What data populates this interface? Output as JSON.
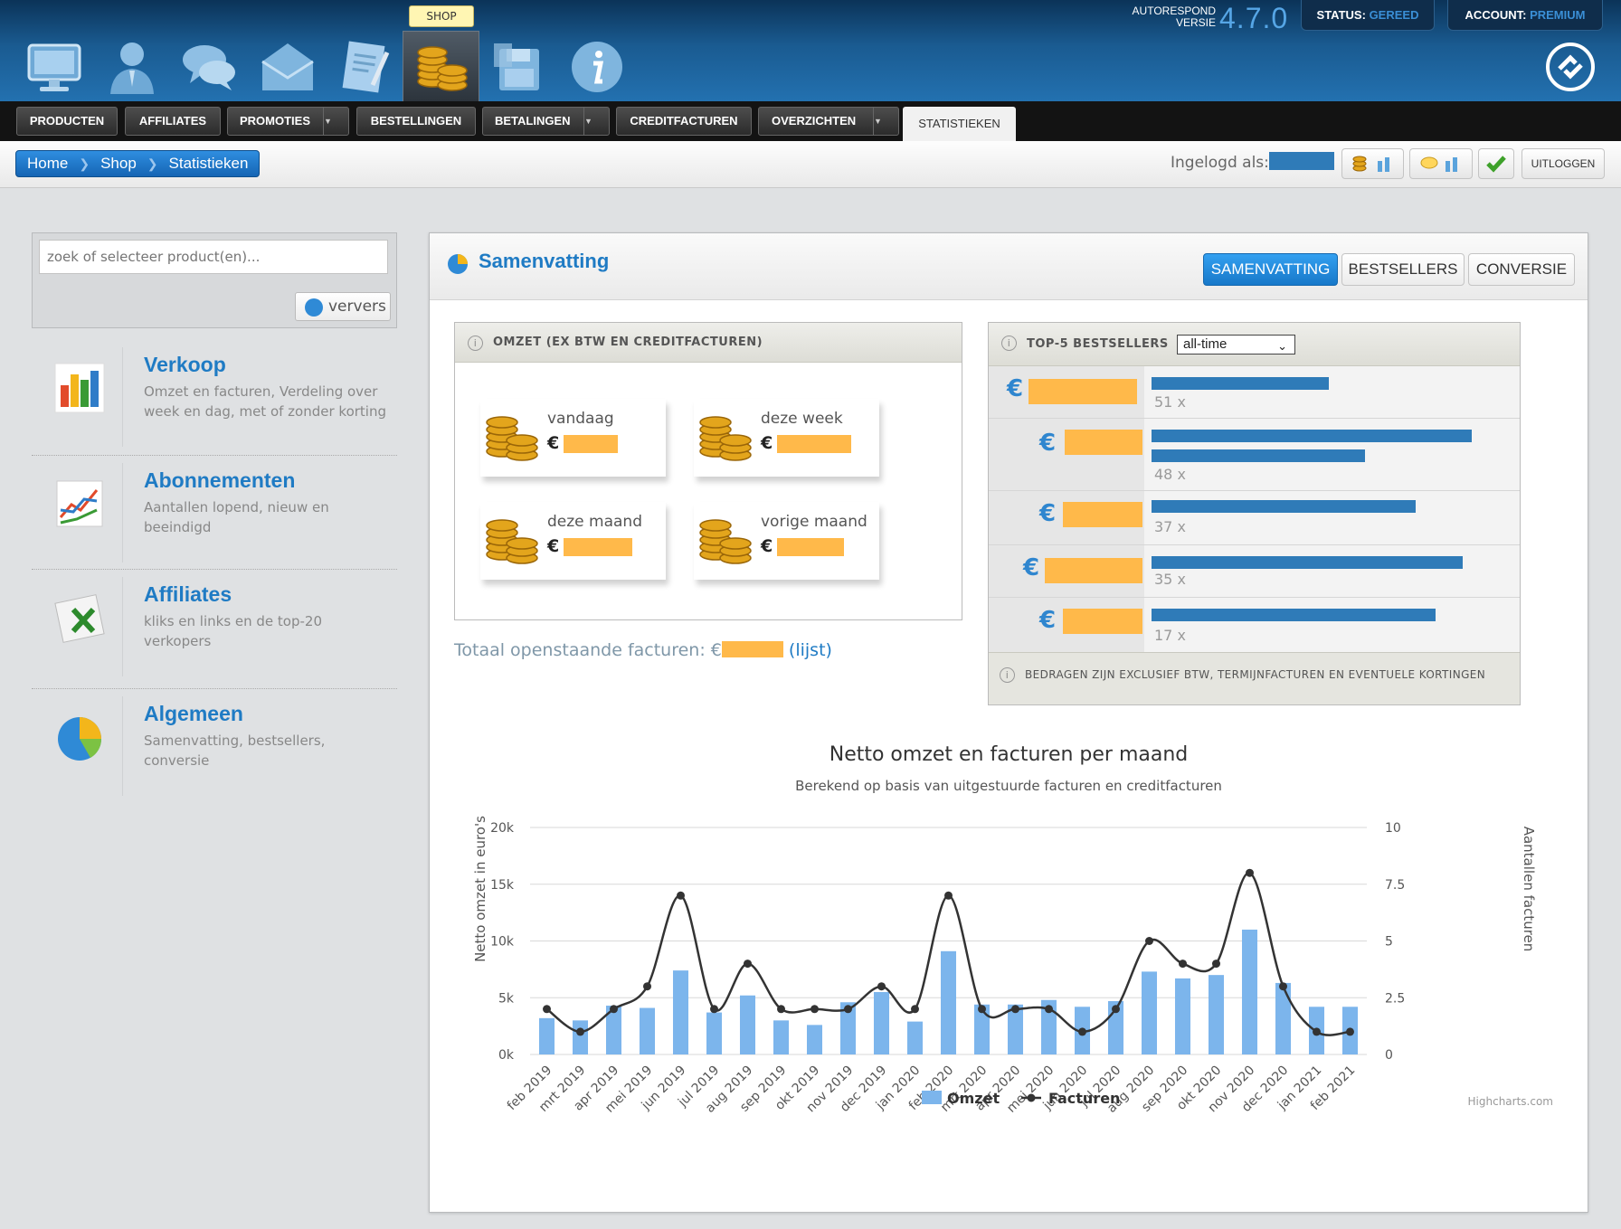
{
  "header": {
    "shop_tooltip": "SHOP",
    "version_label_1": "AUTORESPOND",
    "version_label_2": "VERSIE",
    "version": "4.7.0",
    "status_label": "STATUS:",
    "status_value": "GEREED",
    "account_label": "ACCOUNT:",
    "account_value": "PREMIUM",
    "icons": [
      "monitor-icon",
      "user-icon",
      "chat-icon",
      "envelope-icon",
      "document-icon",
      "coins-icon",
      "floppy-icon",
      "info-icon"
    ]
  },
  "menu": {
    "items": [
      {
        "label": "PRODUCTEN",
        "dropdown": false
      },
      {
        "label": "AFFILIATES",
        "dropdown": false
      },
      {
        "label": "PROMOTIES",
        "dropdown": true
      },
      {
        "label": "BESTELLINGEN",
        "dropdown": false
      },
      {
        "label": "BETALINGEN",
        "dropdown": true
      },
      {
        "label": "CREDITFACTUREN",
        "dropdown": false
      },
      {
        "label": "OVERZICHTEN",
        "dropdown": true
      }
    ],
    "active": "STATISTIEKEN"
  },
  "breadcrumb": [
    "Home",
    "Shop",
    "Statistieken"
  ],
  "session": {
    "login_label": "Ingelogd als:",
    "logout": "UITLOGGEN"
  },
  "sidebar": {
    "search_placeholder": "zoek of selecteer product(en)...",
    "refresh_label": "ververs",
    "items": [
      {
        "title": "Verkoop",
        "desc": "Omzet en facturen, Verdeling over week en dag, met of zonder korting"
      },
      {
        "title": "Abonnementen",
        "desc": "Aantallen lopend, nieuw en beeindigd"
      },
      {
        "title": "Affiliates",
        "desc": "kliks en links en de top-20 verkopers"
      },
      {
        "title": "Algemeen",
        "desc": "Samenvatting, bestsellers, conversie"
      }
    ]
  },
  "main": {
    "title": "Samenvatting",
    "tabs": [
      "SAMENVATTING",
      "BESTSELLERS",
      "CONVERSIE"
    ],
    "active_tab": "SAMENVATTING",
    "omzet": {
      "header": "OMZET (EX BTW EN CREDITFACTUREN)",
      "currency": "€",
      "cards": [
        "vandaag",
        "deze week",
        "deze maand",
        "vorige maand"
      ]
    },
    "open_invoices_label": "Totaal openstaande facturen: €",
    "open_invoices_link": "(lijst)",
    "top5": {
      "header": "TOP-5 BESTSELLERS",
      "period": "all-time",
      "currency": "€",
      "counts": [
        "51 x",
        "48 x",
        "37 x",
        "35 x",
        "17 x"
      ],
      "footer": "BEDRAGEN ZIJN EXCLUSIEF BTW, TERMIJNFACTUREN EN EVENTUELE KORTINGEN"
    }
  },
  "chart_data": {
    "type": "bar+line",
    "title": "Netto omzet en facturen per maand",
    "subtitle": "Berekend op basis van uitgestuurde facturen en creditfacturen",
    "ylabel": "Netto omzet in euro's",
    "y2label": "Aantallen facturen",
    "ylim": [
      0,
      20000
    ],
    "y2lim": [
      0,
      10
    ],
    "y_ticks": [
      "0k",
      "5k",
      "10k",
      "15k",
      "20k"
    ],
    "y2_ticks": [
      "0",
      "2.5",
      "5",
      "7.5",
      "10"
    ],
    "grid": true,
    "legend_position": "bottom-center",
    "credits": "Highcharts.com",
    "categories": [
      "feb 2019",
      "mrt 2019",
      "apr 2019",
      "mei 2019",
      "jun 2019",
      "jul 2019",
      "aug 2019",
      "sep 2019",
      "okt 2019",
      "nov 2019",
      "dec 2019",
      "jan 2020",
      "feb 2020",
      "mrt 2020",
      "apr 2020",
      "mei 2020",
      "jun 2020",
      "jul 2020",
      "aug 2020",
      "sep 2020",
      "okt 2020",
      "nov 2020",
      "dec 2020",
      "jan 2021",
      "feb 2021"
    ],
    "series": [
      {
        "name": "Omzet",
        "type": "bar",
        "color": "#7cb5ec",
        "values": [
          3200,
          3000,
          4300,
          4100,
          7400,
          3700,
          5200,
          3000,
          2600,
          4600,
          5500,
          2900,
          9100,
          4400,
          4400,
          4800,
          4200,
          4700,
          7300,
          6700,
          7000,
          11000,
          6300,
          4200,
          4200
        ]
      },
      {
        "name": "Facturen",
        "type": "line",
        "color": "#333333",
        "values": [
          2,
          1,
          2,
          3,
          7,
          2,
          4,
          2,
          2,
          2,
          3,
          2,
          7,
          2,
          2,
          2,
          1,
          2,
          5,
          4,
          4,
          8,
          3,
          1,
          1
        ]
      }
    ]
  }
}
